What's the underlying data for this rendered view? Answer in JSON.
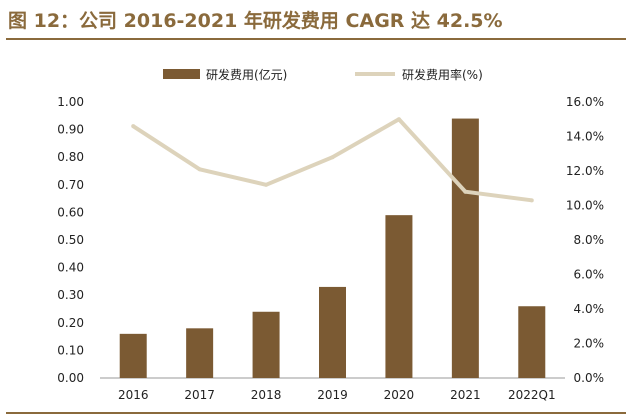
{
  "title": "图 12：公司 2016-2021 年研发费用 CAGR 达 42.5%",
  "colors": {
    "bar": "#7b5a33",
    "line": "#ddd3bb",
    "brand": "#8a6a3c"
  },
  "chart_data": {
    "type": "bar+line",
    "categories": [
      "2016",
      "2017",
      "2018",
      "2019",
      "2020",
      "2021",
      "2022Q1"
    ],
    "series": [
      {
        "name": "研发费用(亿元)",
        "type": "bar",
        "axis": "left",
        "values": [
          0.16,
          0.18,
          0.24,
          0.33,
          0.59,
          0.94,
          0.26
        ]
      },
      {
        "name": "研发费用率(%)",
        "type": "line",
        "axis": "right",
        "values": [
          14.6,
          12.1,
          11.2,
          12.8,
          15.0,
          10.8,
          10.3
        ]
      }
    ],
    "y_left": {
      "ylim": [
        0,
        1.0
      ],
      "ticks": [
        "0.00",
        "0.10",
        "0.20",
        "0.30",
        "0.40",
        "0.50",
        "0.60",
        "0.70",
        "0.80",
        "0.90",
        "1.00"
      ]
    },
    "y_right": {
      "ylim": [
        0,
        16
      ],
      "ticks": [
        "0.0%",
        "2.0%",
        "4.0%",
        "6.0%",
        "8.0%",
        "10.0%",
        "12.0%",
        "14.0%",
        "16.0%"
      ]
    },
    "legend": "top-center",
    "grid": false
  }
}
